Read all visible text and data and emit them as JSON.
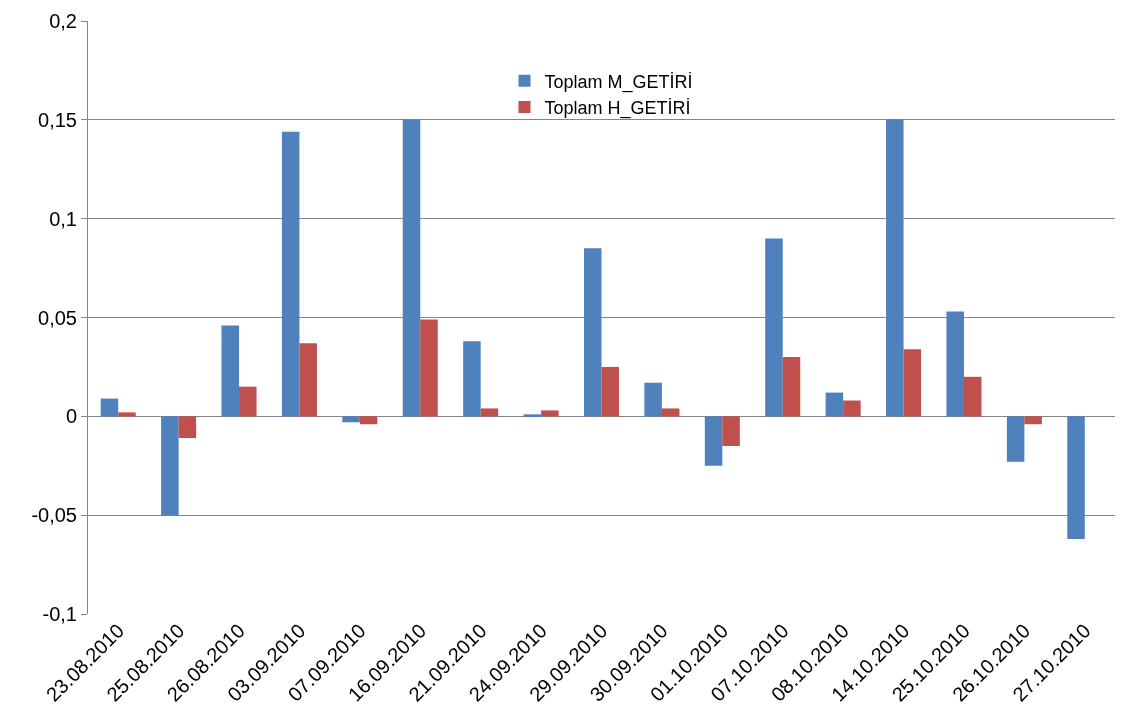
{
  "chart_data": {
    "type": "bar",
    "categories": [
      "23.08.2010",
      "25.08.2010",
      "26.08.2010",
      "03.09.2010",
      "07.09.2010",
      "16.09.2010",
      "21.09.2010",
      "24.09.2010",
      "29.09.2010",
      "30.09.2010",
      "01.10.2010",
      "07.10.2010",
      "08.10.2010",
      "14.10.2010",
      "25.10.2010",
      "26.10.2010",
      "27.10.2010"
    ],
    "series": [
      {
        "name": "Toplam M_GETİRİ",
        "color": "#4f81bd",
        "values": [
          0.009,
          -0.05,
          0.046,
          0.144,
          -0.003,
          0.15,
          0.038,
          0.001,
          0.085,
          0.017,
          -0.025,
          0.09,
          0.012,
          0.15,
          0.053,
          -0.023,
          -0.062
        ]
      },
      {
        "name": "Toplam H_GETİRİ",
        "color": "#c0504d",
        "values": [
          0.002,
          -0.011,
          0.015,
          0.037,
          -0.004,
          0.049,
          0.004,
          0.003,
          0.025,
          0.004,
          -0.015,
          0.03,
          0.008,
          0.034,
          0.02,
          -0.004,
          null
        ]
      }
    ],
    "ylim": [
      -0.1,
      0.2
    ],
    "yticks": [
      {
        "value": -0.1,
        "label": "-0,1"
      },
      {
        "value": -0.05,
        "label": "-0,05"
      },
      {
        "value": 0,
        "label": "0"
      },
      {
        "value": 0.05,
        "label": "0,05"
      },
      {
        "value": 0.1,
        "label": "0,1"
      },
      {
        "value": 0.15,
        "label": "0,15"
      },
      {
        "value": 0.2,
        "label": "0,2"
      }
    ],
    "grid": "y",
    "legend": "top"
  }
}
